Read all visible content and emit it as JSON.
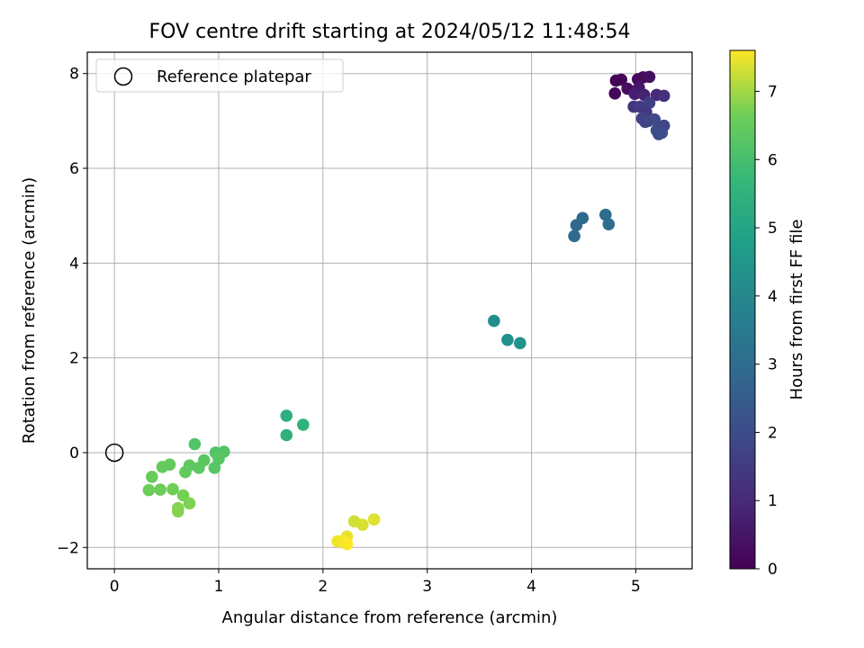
{
  "chart_data": {
    "type": "scatter",
    "title": "FOV centre drift starting at 2024/05/12 11:48:54",
    "xlabel": "Angular distance from reference (arcmin)",
    "ylabel": "Rotation from reference (arcmin)",
    "xlim": [
      -0.26,
      5.54
    ],
    "ylim": [
      -2.45,
      8.45
    ],
    "xticks": [
      0,
      1,
      2,
      3,
      4,
      5
    ],
    "yticks": [
      -2,
      0,
      2,
      4,
      6,
      8
    ],
    "xtick_labels": [
      "0",
      "1",
      "2",
      "3",
      "4",
      "5"
    ],
    "ytick_labels": [
      "−2",
      "0",
      "2",
      "4",
      "6",
      "8"
    ],
    "grid": true,
    "legend": {
      "label": "Reference platepar",
      "placement": "top-left"
    },
    "reference_point": {
      "x": 0,
      "y": 0
    },
    "colorbar": {
      "label": "Hours from first FF file",
      "range": [
        0,
        7.6
      ],
      "ticks": [
        0,
        1,
        2,
        3,
        4,
        5,
        6,
        7
      ],
      "tick_labels": [
        "0",
        "1",
        "2",
        "3",
        "4",
        "5",
        "6",
        "7"
      ],
      "colormap": "viridis"
    },
    "points": [
      {
        "x": 4.81,
        "y": 7.85,
        "h": 0.05
      },
      {
        "x": 4.86,
        "y": 7.87,
        "h": 0.1
      },
      {
        "x": 4.8,
        "y": 7.58,
        "h": 0.15
      },
      {
        "x": 4.92,
        "y": 7.68,
        "h": 0.3
      },
      {
        "x": 5.02,
        "y": 7.88,
        "h": 0.2
      },
      {
        "x": 5.07,
        "y": 7.92,
        "h": 0.25
      },
      {
        "x": 5.13,
        "y": 7.93,
        "h": 0.35
      },
      {
        "x": 5.03,
        "y": 7.7,
        "h": 0.5
      },
      {
        "x": 4.99,
        "y": 7.57,
        "h": 0.7
      },
      {
        "x": 5.08,
        "y": 7.55,
        "h": 0.8
      },
      {
        "x": 5.2,
        "y": 7.55,
        "h": 1.0
      },
      {
        "x": 5.27,
        "y": 7.53,
        "h": 1.2
      },
      {
        "x": 4.98,
        "y": 7.3,
        "h": 1.3
      },
      {
        "x": 5.04,
        "y": 7.3,
        "h": 1.5
      },
      {
        "x": 5.13,
        "y": 7.38,
        "h": 1.6
      },
      {
        "x": 5.1,
        "y": 7.18,
        "h": 1.4
      },
      {
        "x": 5.06,
        "y": 7.05,
        "h": 1.7
      },
      {
        "x": 5.12,
        "y": 7.0,
        "h": 1.8
      },
      {
        "x": 5.18,
        "y": 7.03,
        "h": 1.9
      },
      {
        "x": 5.09,
        "y": 6.98,
        "h": 1.75
      },
      {
        "x": 5.27,
        "y": 6.9,
        "h": 1.85
      },
      {
        "x": 5.2,
        "y": 6.8,
        "h": 1.95
      },
      {
        "x": 5.22,
        "y": 6.72,
        "h": 1.98
      },
      {
        "x": 5.25,
        "y": 6.75,
        "h": 2.0
      },
      {
        "x": 4.43,
        "y": 4.8,
        "h": 2.85
      },
      {
        "x": 4.49,
        "y": 4.95,
        "h": 2.9
      },
      {
        "x": 4.41,
        "y": 4.57,
        "h": 2.95
      },
      {
        "x": 4.71,
        "y": 5.02,
        "h": 3.0
      },
      {
        "x": 4.74,
        "y": 4.82,
        "h": 3.05
      },
      {
        "x": 3.64,
        "y": 2.78,
        "h": 4.25
      },
      {
        "x": 3.77,
        "y": 2.38,
        "h": 4.3
      },
      {
        "x": 3.89,
        "y": 2.31,
        "h": 4.35
      },
      {
        "x": 1.65,
        "y": 0.78,
        "h": 5.4
      },
      {
        "x": 1.65,
        "y": 0.37,
        "h": 5.45
      },
      {
        "x": 1.81,
        "y": 0.59,
        "h": 5.5
      },
      {
        "x": 0.77,
        "y": 0.18,
        "h": 6.2
      },
      {
        "x": 0.97,
        "y": 0.0,
        "h": 6.2
      },
      {
        "x": 1.05,
        "y": 0.02,
        "h": 6.25
      },
      {
        "x": 1.0,
        "y": -0.13,
        "h": 6.3
      },
      {
        "x": 0.96,
        "y": -0.32,
        "h": 6.3
      },
      {
        "x": 0.86,
        "y": -0.16,
        "h": 6.35
      },
      {
        "x": 0.81,
        "y": -0.32,
        "h": 6.4
      },
      {
        "x": 0.72,
        "y": -0.27,
        "h": 6.4
      },
      {
        "x": 0.68,
        "y": -0.41,
        "h": 6.45
      },
      {
        "x": 0.53,
        "y": -0.25,
        "h": 6.5
      },
      {
        "x": 0.46,
        "y": -0.3,
        "h": 6.5
      },
      {
        "x": 0.36,
        "y": -0.51,
        "h": 6.55
      },
      {
        "x": 0.33,
        "y": -0.79,
        "h": 6.6
      },
      {
        "x": 0.44,
        "y": -0.78,
        "h": 6.6
      },
      {
        "x": 0.56,
        "y": -0.77,
        "h": 6.65
      },
      {
        "x": 0.66,
        "y": -0.9,
        "h": 6.7
      },
      {
        "x": 0.72,
        "y": -1.07,
        "h": 6.75
      },
      {
        "x": 0.61,
        "y": -1.17,
        "h": 6.8
      },
      {
        "x": 0.61,
        "y": -1.24,
        "h": 6.8
      },
      {
        "x": 2.3,
        "y": -1.45,
        "h": 7.3
      },
      {
        "x": 2.38,
        "y": -1.52,
        "h": 7.35
      },
      {
        "x": 2.49,
        "y": -1.41,
        "h": 7.4
      },
      {
        "x": 2.23,
        "y": -1.77,
        "h": 7.45
      },
      {
        "x": 2.14,
        "y": -1.87,
        "h": 7.5
      },
      {
        "x": 2.2,
        "y": -1.86,
        "h": 7.55
      },
      {
        "x": 2.23,
        "y": -1.93,
        "h": 7.6
      }
    ]
  }
}
